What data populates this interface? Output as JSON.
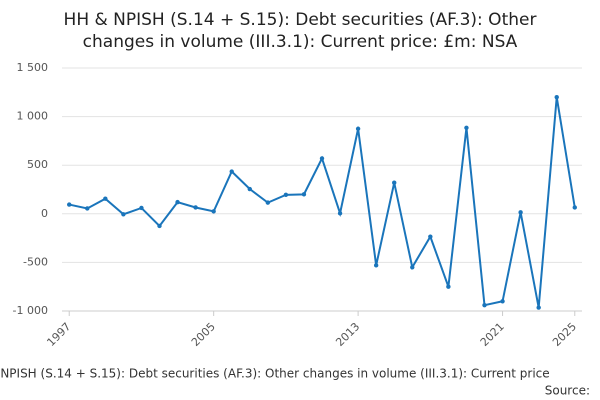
{
  "chart_data": {
    "type": "line",
    "title": [
      "HH & NPISH (S.14 + S.15): Debt securities (AF.3): Other",
      "changes in volume (III.3.1): Current price: £m: NSA"
    ],
    "footer": "NPISH (S.14 + S.15): Debt securities (AF.3): Other changes in volume (III.3.1): Current price",
    "source": "Source:",
    "x": [
      1997,
      1998,
      1999,
      2000,
      2001,
      2002,
      2003,
      2004,
      2005,
      2006,
      2007,
      2008,
      2009,
      2010,
      2011,
      2012,
      2013,
      2014,
      2015,
      2016,
      2017,
      2018,
      2019,
      2020,
      2021,
      2022,
      2023,
      2024,
      2025
    ],
    "series": [
      {
        "name": "Other changes in volume",
        "color": "#1a75bb",
        "values": [
          95,
          55,
          155,
          -5,
          60,
          -125,
          120,
          65,
          25,
          435,
          255,
          115,
          195,
          200,
          570,
          5,
          875,
          -530,
          320,
          -550,
          -235,
          -750,
          885,
          -940,
          -900,
          15,
          -965,
          1200,
          65
        ]
      }
    ],
    "xlim": [
      1996.6,
      2025.4
    ],
    "xticks": [
      1997,
      2005,
      2013,
      2021,
      2025
    ],
    "ylim": [
      -1000,
      1500
    ],
    "yticks": [
      {
        "value": -1000,
        "label": "-1 000"
      },
      -500,
      0,
      500,
      {
        "value": 1000,
        "label": "1 000"
      },
      {
        "value": 1500,
        "label": "1 500"
      }
    ],
    "grid": true
  }
}
